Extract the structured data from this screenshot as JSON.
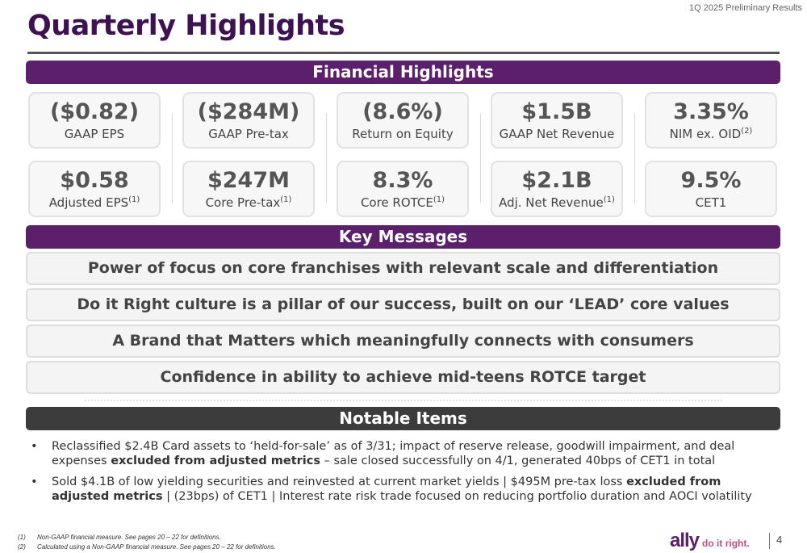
{
  "header": {
    "top_right": "1Q 2025 Preliminary Results",
    "title": "Quarterly Highlights"
  },
  "financial": {
    "heading": "Financial Highlights",
    "row1": [
      {
        "value": "($0.82)",
        "label": "GAAP EPS",
        "sup": ""
      },
      {
        "value": "($284M)",
        "label": "GAAP Pre-tax",
        "sup": ""
      },
      {
        "value": "(8.6%)",
        "label": "Return on Equity",
        "sup": ""
      },
      {
        "value": "$1.5B",
        "label": "GAAP Net Revenue",
        "sup": ""
      },
      {
        "value": "3.35%",
        "label": "NIM ex. OID",
        "sup": "(2)"
      }
    ],
    "row2": [
      {
        "value": "$0.58",
        "label": "Adjusted EPS",
        "sup": "(1)"
      },
      {
        "value": "$247M",
        "label": "Core Pre-tax",
        "sup": "(1)"
      },
      {
        "value": "8.3%",
        "label": "Core ROTCE",
        "sup": "(1)"
      },
      {
        "value": "$2.1B",
        "label": "Adj. Net Revenue",
        "sup": "(1)"
      },
      {
        "value": "9.5%",
        "label": "CET1",
        "sup": ""
      }
    ]
  },
  "key_messages": {
    "heading": "Key Messages",
    "items": [
      "Power of focus on core franchises with relevant scale and differentiation",
      "Do it Right culture is a pillar of our success, built on our ‘LEAD’ core values",
      "A Brand that Matters which meaningfully connects with consumers",
      "Confidence in ability to achieve mid-teens ROTCE target"
    ]
  },
  "notable": {
    "heading": "Notable Items",
    "bullet1": {
      "a": "Reclassified $2.4B Card assets to ‘held-for-sale’ as of 3/31; impact of reserve release, goodwill impairment, and deal expenses ",
      "b": "excluded from adjusted metrics",
      "c": " – sale closed successfully on 4/1, generated 40bps of CET1 in total"
    },
    "bullet2": {
      "a": "Sold $4.1B of low yielding securities and reinvested at current market yields | $495M pre-tax loss ",
      "b": "excluded from adjusted metrics",
      "c": " | (23bps) of CET1 | Interest rate risk trade focused on reducing portfolio duration and AOCI volatility"
    }
  },
  "footnotes": [
    {
      "mark": "(1)",
      "text": "Non-GAAP financial measure. See pages 20 – 22 for definitions."
    },
    {
      "mark": "(2)",
      "text": "Calculated using a Non-GAAP financial measure. See pages 20 – 22 for definitions."
    }
  ],
  "footer": {
    "logo": "ally",
    "tagline": "do it right.",
    "page": "4"
  },
  "colors": {
    "brand_purple": "#5b1f6b",
    "title_purple": "#3d1152",
    "notable_band": "#3c3c3c",
    "tagline_pink": "#c74a87"
  }
}
